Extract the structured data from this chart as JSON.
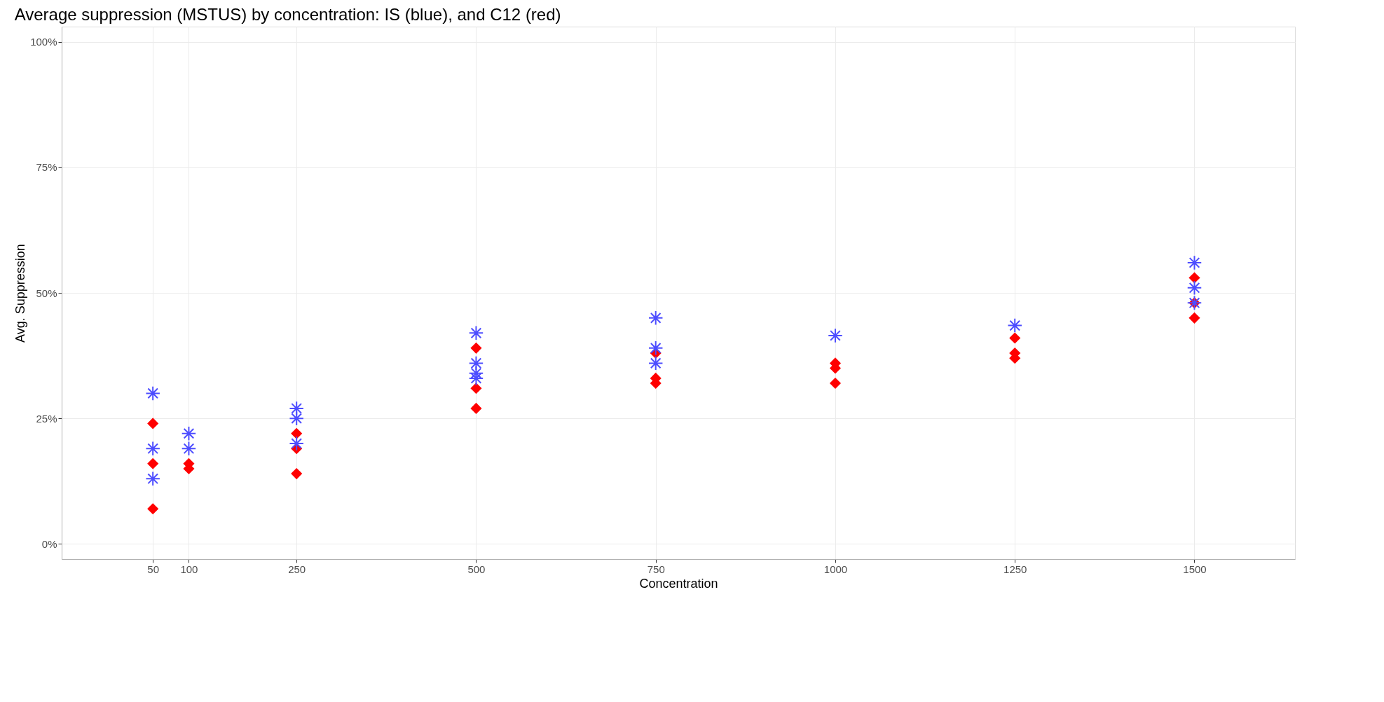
{
  "chart_data": {
    "type": "scatter",
    "title": "Average suppression (MSTUS) by concentration: IS (blue), and C12 (red)",
    "xlabel": "Concentration",
    "ylabel": "Avg. Suppression",
    "xlim": [
      -77,
      1640
    ],
    "xticks": [
      50,
      100,
      250,
      500,
      750,
      1000,
      1250,
      1500
    ],
    "ylim": [
      -3,
      103
    ],
    "yticks": [
      {
        "value": 0,
        "label": "0%"
      },
      {
        "value": 25,
        "label": "25%"
      },
      {
        "value": 50,
        "label": "50%"
      },
      {
        "value": 75,
        "label": "75%"
      },
      {
        "value": 100,
        "label": "100%"
      }
    ],
    "grid": true,
    "series": [
      {
        "color": "#4d4dff",
        "marker": "cross",
        "x": [
          50,
          50,
          50,
          100,
          100,
          250,
          250,
          250,
          500,
          500,
          500,
          500,
          750,
          750,
          750,
          1000,
          1250,
          1500,
          1500,
          1500
        ],
        "values": [
          30,
          19,
          13,
          22,
          19,
          27,
          25,
          20,
          42,
          36,
          34,
          33,
          45,
          39,
          36,
          41.5,
          43.5,
          56,
          51,
          48
        ]
      },
      {
        "color": "#ff0000",
        "marker": "diamond",
        "x": [
          50,
          50,
          50,
          100,
          100,
          250,
          250,
          250,
          500,
          500,
          500,
          750,
          750,
          750,
          1000,
          1000,
          1000,
          1250,
          1250,
          1250,
          1500,
          1500,
          1500
        ],
        "values": [
          24,
          16,
          7,
          16,
          15,
          22,
          19,
          14,
          39,
          31,
          27,
          38,
          33,
          32,
          36,
          35,
          32,
          41,
          38,
          37,
          53,
          48,
          45
        ]
      }
    ]
  }
}
